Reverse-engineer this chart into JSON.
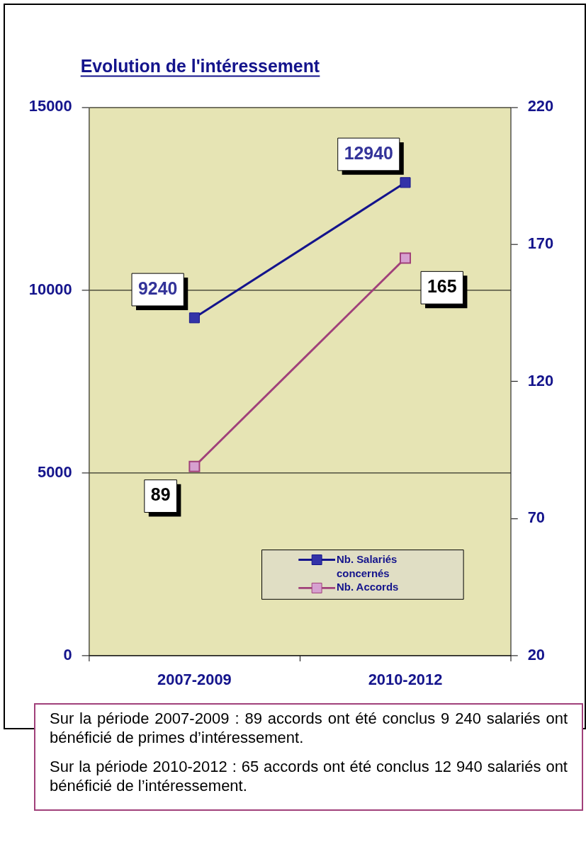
{
  "chart_data": {
    "type": "line",
    "title": "Evolution de l'intéressement",
    "categories": [
      "2007-2009",
      "2010-2012"
    ],
    "series": [
      {
        "name": "Nb. Salariés concernés",
        "color": "#14148c",
        "marker": "square",
        "values": [
          9240,
          12940
        ]
      },
      {
        "name": "Nb. Accords",
        "color": "#a0407a",
        "marker": "square",
        "axis": "y2",
        "values": [
          89,
          165
        ]
      }
    ],
    "ylim": [
      0,
      15000
    ],
    "yticks": [
      0,
      5000,
      10000,
      15000
    ],
    "y2lim": [
      20,
      220
    ],
    "y2ticks": [
      20,
      70,
      120,
      170,
      220
    ],
    "grid": "y",
    "legend": "bottom right",
    "data_labels": true,
    "line_style": "solid",
    "annotations": [
      "Sur la période 2007-2009 : 89 accords ont été conclus 9 240 salariés ont bénéficié de primes d’intéressement.",
      "Sur la période 2010-2012 : 65 accords ont été conclus 12 940 salariés ont bénéficié de l’intéressement."
    ]
  }
}
